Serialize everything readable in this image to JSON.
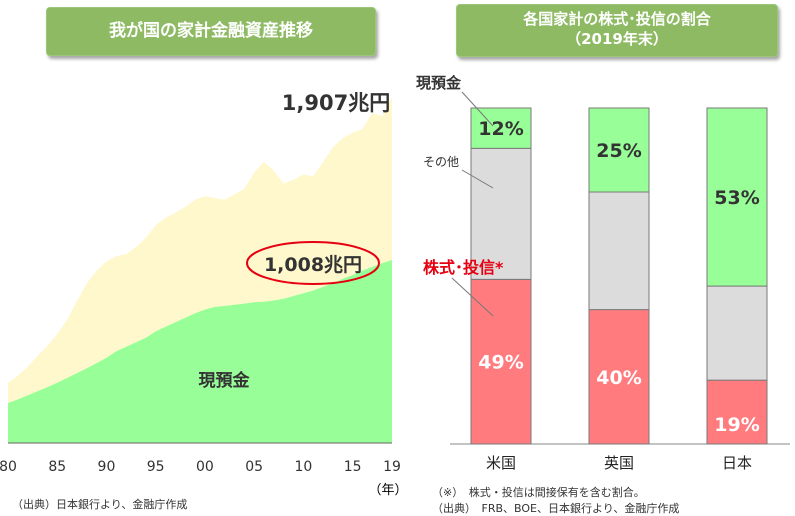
{
  "left_panel": {
    "title": "我が国の家計金融資産推移",
    "total_label": "1,907兆円",
    "cash_value_label": "1,008兆円",
    "cash_area_label": "現預金",
    "x_ticks": [
      "80",
      "85",
      "90",
      "95",
      "00",
      "05",
      "10",
      "15",
      "19"
    ],
    "x_unit": "（年）",
    "source": "（出典）日本銀行より、金融庁作成"
  },
  "right_panel": {
    "title_line1": "各国家計の株式･投信の割合",
    "title_line2": "（2019年末）",
    "annotation_cash": "現預金",
    "annotation_other": "その他",
    "annotation_stocks": "株式･投信*",
    "note_line1": "（※）　株式・投信は間接保有を含む割合。",
    "note_line2": "（出典）　FRB、BOE、日本銀行より、金融庁作成"
  },
  "colors": {
    "banner": "#8dba63",
    "cash_area": "#98ff98",
    "total_area": "#fff8cc",
    "bar_cash": "#98ff98",
    "bar_other": "#dcdcdc",
    "bar_stocks": "#ff7b7e",
    "highlight_red": "#e60012"
  },
  "chart_data": [
    {
      "type": "area",
      "title": "我が国の家計金融資産推移",
      "x": [
        1980,
        1981,
        1982,
        1983,
        1984,
        1985,
        1986,
        1987,
        1988,
        1989,
        1990,
        1991,
        1992,
        1993,
        1994,
        1995,
        1996,
        1997,
        1998,
        1999,
        2000,
        2001,
        2002,
        2003,
        2004,
        2005,
        2006,
        2007,
        2008,
        2009,
        2010,
        2011,
        2012,
        2013,
        2014,
        2015,
        2016,
        2017,
        2018,
        2019
      ],
      "series": [
        {
          "name": "現預金",
          "values": [
            220,
            240,
            262,
            285,
            308,
            332,
            358,
            385,
            412,
            440,
            470,
            505,
            530,
            555,
            580,
            615,
            640,
            665,
            690,
            715,
            735,
            750,
            755,
            762,
            768,
            775,
            778,
            785,
            795,
            810,
            825,
            840,
            860,
            880,
            905,
            925,
            950,
            970,
            990,
            1008
          ]
        },
        {
          "name": "total",
          "values": [
            330,
            370,
            420,
            480,
            535,
            600,
            680,
            780,
            880,
            950,
            1000,
            1030,
            1040,
            1080,
            1130,
            1200,
            1240,
            1270,
            1300,
            1340,
            1360,
            1350,
            1340,
            1370,
            1400,
            1490,
            1550,
            1500,
            1430,
            1450,
            1480,
            1470,
            1550,
            1630,
            1680,
            1710,
            1730,
            1820,
            1800,
            1907
          ]
        }
      ],
      "ylim": [
        0,
        2000
      ],
      "annotations": [
        "1,907兆円",
        "1,008兆円",
        "現預金"
      ]
    },
    {
      "type": "bar",
      "title": "各国家計の株式･投信の割合（2019年末）",
      "categories": [
        "米国",
        "英国",
        "日本"
      ],
      "series": [
        {
          "name": "株式･投信",
          "values": [
            49,
            40,
            19
          ]
        },
        {
          "name": "その他",
          "values": [
            39,
            35,
            28
          ]
        },
        {
          "name": "現預金",
          "values": [
            12,
            25,
            53
          ]
        }
      ],
      "stacked": true,
      "ylim": [
        0,
        100
      ]
    }
  ]
}
